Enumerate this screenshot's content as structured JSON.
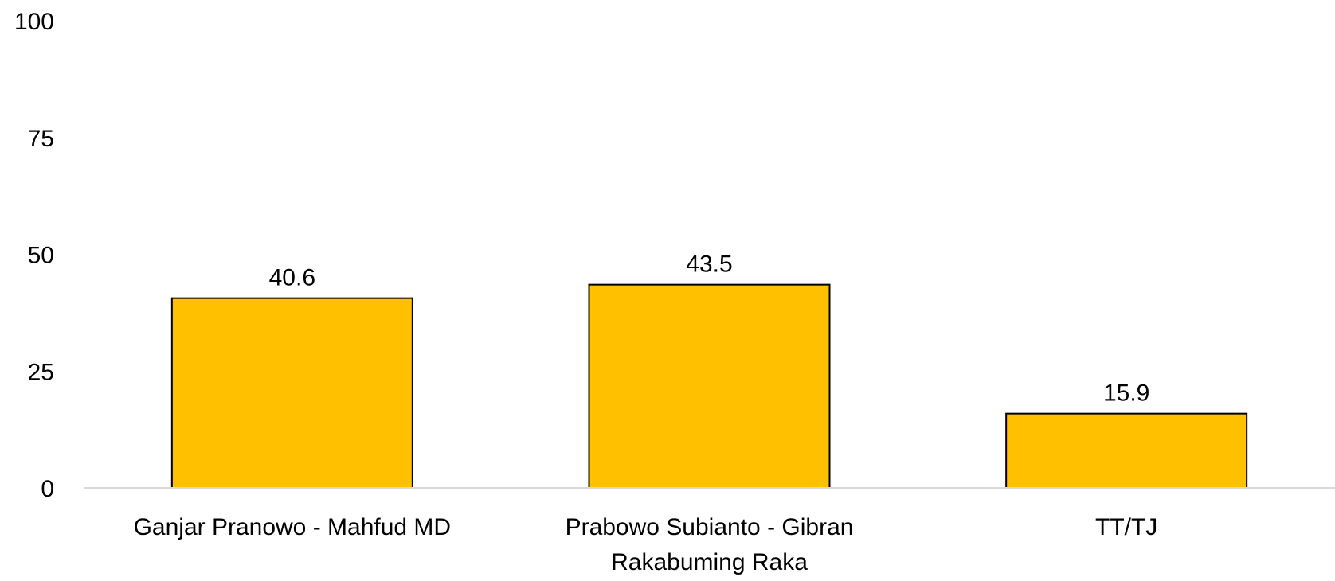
{
  "chart_data": {
    "type": "bar",
    "title": "",
    "xlabel": "",
    "ylabel": "",
    "ylim": [
      0,
      100
    ],
    "yticks": [
      0,
      25,
      50,
      75,
      100
    ],
    "grid": false,
    "categories": [
      [
        "Ganjar Pranowo - Mahfud MD"
      ],
      [
        "Prabowo Subianto - Gibran",
        "Rakabuming Raka"
      ],
      [
        "TT/TJ"
      ]
    ],
    "values": [
      40.6,
      43.5,
      15.9
    ],
    "value_labels": [
      "40.6",
      "43.5",
      "15.9"
    ],
    "colors": {
      "bar_fill": "#FFC000",
      "bar_stroke": "#000000",
      "axis_line": "#D9D9D9",
      "text": "#000000"
    }
  }
}
